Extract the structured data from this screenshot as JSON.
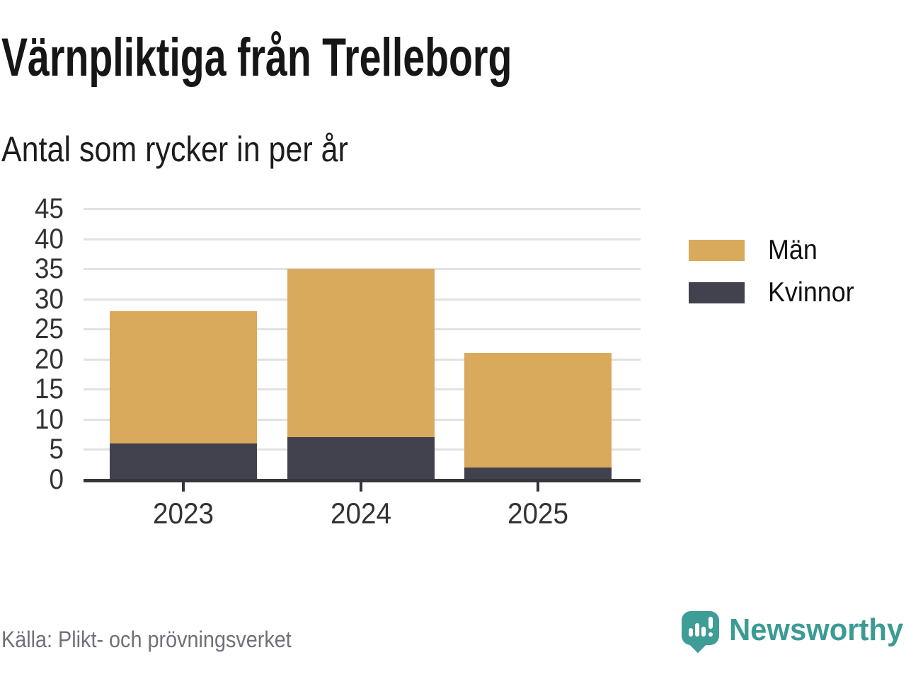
{
  "header": {
    "title": "Värnpliktiga från Trelleborg",
    "subtitle": "Antal som rycker in per år"
  },
  "chart_data": {
    "type": "bar",
    "stacked": true,
    "title": "Värnpliktiga från Trelleborg",
    "subtitle": "Antal som rycker in per år",
    "categories": [
      "2023",
      "2024",
      "2025"
    ],
    "series": [
      {
        "name": "Kvinnor",
        "color": "#42424e",
        "values": [
          6,
          7,
          2
        ]
      },
      {
        "name": "Män",
        "color": "#d9a95c",
        "values": [
          22,
          28,
          19
        ]
      }
    ],
    "totals": [
      28,
      35,
      21
    ],
    "xlabel": "",
    "ylabel": "",
    "ylim": [
      0,
      45
    ],
    "y_ticks": [
      0,
      5,
      10,
      15,
      20,
      25,
      30,
      35,
      40,
      45
    ],
    "grid": true,
    "legend_position": "right"
  },
  "legend": {
    "items": [
      {
        "label": "Män",
        "color": "#d9a95c"
      },
      {
        "label": "Kvinnor",
        "color": "#42424e"
      }
    ]
  },
  "footer": {
    "source": "Källa: Plikt- och prövningsverket",
    "brand_name": "Newsworthy"
  },
  "colors": {
    "men": "#d9a95c",
    "women": "#42424e",
    "grid": "#e2e2e2",
    "axis": "#35353d",
    "accent_teal": "#3e9d96",
    "source_gray": "#70707a"
  }
}
